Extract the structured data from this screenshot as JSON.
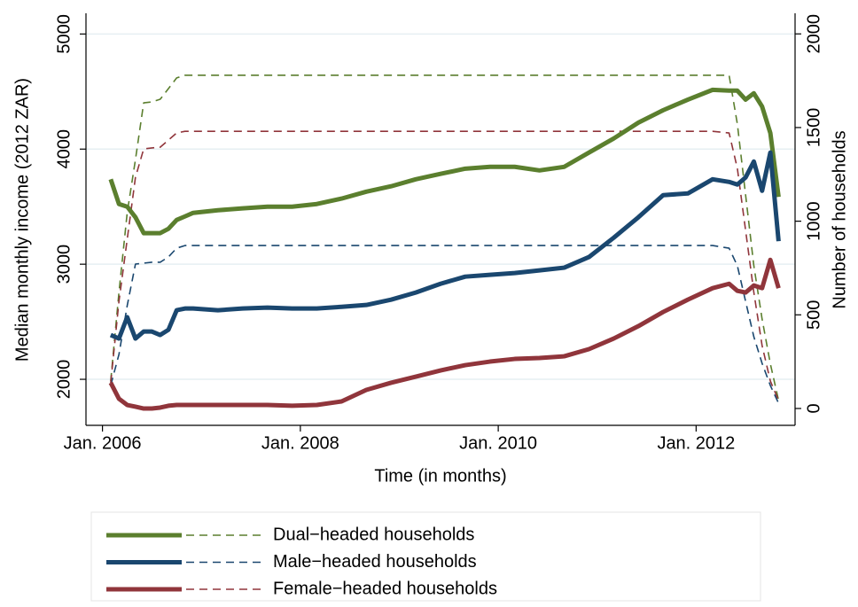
{
  "chart_data": {
    "type": "line",
    "x_label": "Time (in months)",
    "y_label": "Median monthly income (2012 ZAR)",
    "y2_label": "Number of households",
    "x": [
      "2006-02",
      "2006-03",
      "2006-04",
      "2006-05",
      "2006-06",
      "2006-07",
      "2006-08",
      "2006-09",
      "2006-10",
      "2006-11",
      "2006-12",
      "2007-03",
      "2007-06",
      "2007-09",
      "2007-12",
      "2008-03",
      "2008-06",
      "2008-09",
      "2008-12",
      "2009-03",
      "2009-06",
      "2009-09",
      "2009-12",
      "2010-03",
      "2010-06",
      "2010-09",
      "2010-12",
      "2011-03",
      "2011-06",
      "2011-09",
      "2011-12",
      "2012-03",
      "2012-05",
      "2012-06",
      "2012-07",
      "2012-08",
      "2012-09",
      "2012-10",
      "2012-11"
    ],
    "xlim": [
      "2005-11",
      "2013-01"
    ],
    "xticks": [
      {
        "value": "2006-01",
        "label": "Jan. 2006"
      },
      {
        "value": "2008-01",
        "label": "Jan. 2008"
      },
      {
        "value": "2010-01",
        "label": "Jan. 2010"
      },
      {
        "value": "2012-01",
        "label": "Jan. 2012"
      }
    ],
    "ylim": [
      1600,
      5180
    ],
    "yticks": [
      2000,
      3000,
      4000,
      5000
    ],
    "y2lim": [
      -90,
      2110
    ],
    "y2ticks": [
      0,
      500,
      1000,
      1500,
      2000
    ],
    "grid": true,
    "series": [
      {
        "name": "Dual−headed households",
        "color": "#5b7f2e",
        "values": [
          3738,
          3523,
          3500,
          3408,
          3270,
          3270,
          3270,
          3308,
          3385,
          3415,
          3446,
          3469,
          3485,
          3500,
          3500,
          3523,
          3570,
          3630,
          3677,
          3738,
          3785,
          3830,
          3846,
          3846,
          3815,
          3846,
          3970,
          4092,
          4230,
          4338,
          4430,
          4515,
          4508,
          4508,
          4430,
          4485,
          4370,
          4140,
          3585
        ],
        "y2_values": [
          147,
          620,
          1045,
          1329,
          1632,
          1637,
          1651,
          1708,
          1765,
          1779,
          1779,
          1779,
          1779,
          1779,
          1779,
          1779,
          1779,
          1779,
          1779,
          1779,
          1779,
          1779,
          1779,
          1779,
          1779,
          1779,
          1779,
          1779,
          1779,
          1779,
          1779,
          1779,
          1779,
          1519,
          1140,
          762,
          478,
          239,
          43
        ]
      },
      {
        "name": "Male−headed households",
        "color": "#1a476f",
        "values": [
          2385,
          2354,
          2540,
          2354,
          2415,
          2415,
          2385,
          2430,
          2600,
          2615,
          2615,
          2600,
          2615,
          2623,
          2615,
          2615,
          2630,
          2646,
          2692,
          2754,
          2830,
          2892,
          2908,
          2923,
          2946,
          2970,
          3062,
          3230,
          3408,
          3600,
          3615,
          3738,
          3715,
          3692,
          3754,
          3892,
          3638,
          3970,
          3200
        ],
        "y2_values": [
          123,
          289,
          549,
          771,
          776,
          781,
          781,
          809,
          856,
          870,
          870,
          870,
          870,
          870,
          870,
          870,
          870,
          870,
          870,
          870,
          870,
          870,
          870,
          870,
          870,
          870,
          870,
          870,
          870,
          870,
          870,
          870,
          856,
          762,
          572,
          383,
          241,
          123,
          28
        ]
      },
      {
        "name": "Female−headed households",
        "color": "#90353b",
        "values": [
          1970,
          1831,
          1777,
          1762,
          1746,
          1746,
          1754,
          1770,
          1777,
          1777,
          1777,
          1777,
          1777,
          1777,
          1770,
          1777,
          1808,
          1908,
          1970,
          2023,
          2077,
          2123,
          2154,
          2177,
          2185,
          2200,
          2262,
          2354,
          2462,
          2585,
          2692,
          2792,
          2830,
          2769,
          2754,
          2815,
          2792,
          3038,
          2792
        ],
        "y2_values": [
          137,
          572,
          903,
          1234,
          1386,
          1391,
          1395,
          1433,
          1471,
          1480,
          1480,
          1480,
          1480,
          1480,
          1480,
          1480,
          1480,
          1480,
          1480,
          1480,
          1480,
          1480,
          1480,
          1480,
          1480,
          1480,
          1480,
          1480,
          1480,
          1480,
          1480,
          1480,
          1471,
          1282,
          951,
          620,
          336,
          147,
          43
        ]
      }
    ]
  }
}
